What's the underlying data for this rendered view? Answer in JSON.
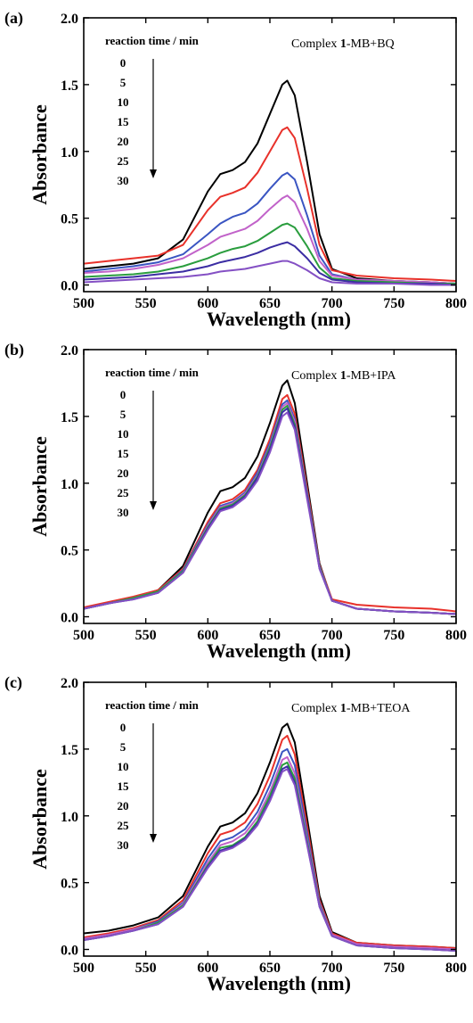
{
  "chart_data": [
    {
      "type": "line",
      "panel_label": "(a)",
      "annotation": {
        "prefix": "Complex ",
        "bold": "1",
        "suffix": "-MB+BQ"
      },
      "legend_title": "reaction time / min",
      "legend_items": [
        "0",
        "5",
        "10",
        "15",
        "20",
        "25",
        "30"
      ],
      "xlabel": "Wavelength (nm)",
      "ylabel": "Absorbance",
      "xlim": [
        500,
        800
      ],
      "ylim": [
        -0.05,
        2.0
      ],
      "xticks": [
        "500",
        "550",
        "600",
        "650",
        "700",
        "750",
        "800"
      ],
      "yticks": [
        "0.0",
        "0.5",
        "1.0",
        "1.5",
        "2.0"
      ],
      "grid": false,
      "colors": [
        "#000000",
        "#e8312a",
        "#3a55c2",
        "#c162c9",
        "#2a9d3e",
        "#3b2da3",
        "#8450c4"
      ],
      "series": [
        {
          "x": [
            500,
            520,
            540,
            560,
            580,
            600,
            610,
            620,
            630,
            640,
            650,
            660,
            664,
            670,
            680,
            690,
            700,
            720,
            750,
            780,
            800
          ],
          "values": [
            0.12,
            0.14,
            0.16,
            0.2,
            0.34,
            0.7,
            0.83,
            0.86,
            0.92,
            1.06,
            1.28,
            1.5,
            1.53,
            1.42,
            0.92,
            0.38,
            0.12,
            0.05,
            0.03,
            0.02,
            0.01
          ]
        },
        {
          "x": [
            500,
            520,
            540,
            560,
            580,
            600,
            610,
            620,
            630,
            640,
            650,
            660,
            664,
            670,
            680,
            690,
            700,
            720,
            750,
            780,
            800
          ],
          "values": [
            0.16,
            0.18,
            0.2,
            0.22,
            0.3,
            0.56,
            0.66,
            0.69,
            0.73,
            0.84,
            1.0,
            1.16,
            1.18,
            1.1,
            0.72,
            0.3,
            0.11,
            0.07,
            0.05,
            0.04,
            0.03
          ]
        },
        {
          "x": [
            500,
            520,
            540,
            560,
            580,
            600,
            610,
            620,
            630,
            640,
            650,
            660,
            664,
            670,
            680,
            690,
            700,
            720,
            750,
            780,
            800
          ],
          "values": [
            0.1,
            0.12,
            0.14,
            0.17,
            0.23,
            0.38,
            0.46,
            0.51,
            0.54,
            0.61,
            0.72,
            0.82,
            0.84,
            0.79,
            0.52,
            0.22,
            0.08,
            0.04,
            0.03,
            0.02,
            0.01
          ]
        },
        {
          "x": [
            500,
            520,
            540,
            560,
            580,
            600,
            610,
            620,
            630,
            640,
            650,
            660,
            664,
            670,
            680,
            690,
            700,
            720,
            750,
            780,
            800
          ],
          "values": [
            0.09,
            0.1,
            0.12,
            0.15,
            0.2,
            0.3,
            0.36,
            0.39,
            0.42,
            0.48,
            0.57,
            0.65,
            0.67,
            0.62,
            0.42,
            0.18,
            0.07,
            0.04,
            0.03,
            0.02,
            0.01
          ]
        },
        {
          "x": [
            500,
            520,
            540,
            560,
            580,
            600,
            610,
            620,
            630,
            640,
            650,
            660,
            664,
            670,
            680,
            690,
            700,
            720,
            750,
            780,
            800
          ],
          "values": [
            0.06,
            0.07,
            0.08,
            0.1,
            0.14,
            0.2,
            0.24,
            0.27,
            0.29,
            0.33,
            0.39,
            0.45,
            0.46,
            0.43,
            0.29,
            0.13,
            0.05,
            0.03,
            0.02,
            0.01,
            0.01
          ]
        },
        {
          "x": [
            500,
            520,
            540,
            560,
            580,
            600,
            610,
            620,
            630,
            640,
            650,
            660,
            664,
            670,
            680,
            690,
            700,
            720,
            750,
            780,
            800
          ],
          "values": [
            0.04,
            0.05,
            0.06,
            0.08,
            0.1,
            0.14,
            0.17,
            0.19,
            0.21,
            0.24,
            0.28,
            0.31,
            0.32,
            0.29,
            0.2,
            0.09,
            0.04,
            0.02,
            0.01,
            0.01,
            0.0
          ]
        },
        {
          "x": [
            500,
            520,
            540,
            560,
            580,
            600,
            610,
            620,
            630,
            640,
            650,
            660,
            664,
            670,
            680,
            690,
            700,
            720,
            750,
            780,
            800
          ],
          "values": [
            0.02,
            0.03,
            0.04,
            0.05,
            0.06,
            0.08,
            0.1,
            0.11,
            0.12,
            0.14,
            0.16,
            0.18,
            0.18,
            0.16,
            0.11,
            0.05,
            0.02,
            0.01,
            0.01,
            0.0,
            0.0
          ]
        }
      ]
    },
    {
      "type": "line",
      "panel_label": "(b)",
      "annotation": {
        "prefix": "Complex ",
        "bold": "1",
        "suffix": "-MB+IPA"
      },
      "legend_title": "reaction time / min",
      "legend_items": [
        "0",
        "5",
        "10",
        "15",
        "20",
        "25",
        "30"
      ],
      "xlabel": "Wavelength (nm)",
      "ylabel": "Absorbance",
      "xlim": [
        500,
        800
      ],
      "ylim": [
        -0.05,
        2.0
      ],
      "xticks": [
        "500",
        "550",
        "600",
        "650",
        "700",
        "750",
        "800"
      ],
      "yticks": [
        "0.0",
        "0.5",
        "1.0",
        "1.5",
        "2.0"
      ],
      "grid": false,
      "colors": [
        "#000000",
        "#e8312a",
        "#3a55c2",
        "#c162c9",
        "#2a9d3e",
        "#3b2da3",
        "#8450c4"
      ],
      "series": [
        {
          "x": [
            500,
            520,
            540,
            560,
            580,
            600,
            610,
            620,
            630,
            640,
            650,
            660,
            664,
            670,
            680,
            690,
            700,
            720,
            750,
            780,
            800
          ],
          "values": [
            0.06,
            0.1,
            0.14,
            0.2,
            0.38,
            0.78,
            0.94,
            0.97,
            1.04,
            1.2,
            1.45,
            1.73,
            1.77,
            1.6,
            1.0,
            0.4,
            0.12,
            0.06,
            0.04,
            0.03,
            0.02
          ]
        },
        {
          "x": [
            500,
            520,
            540,
            560,
            580,
            600,
            610,
            620,
            630,
            640,
            650,
            660,
            664,
            670,
            680,
            690,
            700,
            720,
            750,
            780,
            800
          ],
          "values": [
            0.07,
            0.11,
            0.15,
            0.2,
            0.36,
            0.71,
            0.85,
            0.88,
            0.95,
            1.1,
            1.33,
            1.63,
            1.66,
            1.52,
            0.96,
            0.39,
            0.13,
            0.09,
            0.07,
            0.06,
            0.04
          ]
        },
        {
          "x": [
            500,
            520,
            540,
            560,
            580,
            600,
            610,
            620,
            630,
            640,
            650,
            660,
            664,
            670,
            680,
            690,
            700,
            720,
            750,
            780,
            800
          ],
          "values": [
            0.06,
            0.1,
            0.14,
            0.19,
            0.35,
            0.69,
            0.83,
            0.86,
            0.93,
            1.08,
            1.3,
            1.59,
            1.62,
            1.48,
            0.93,
            0.38,
            0.12,
            0.06,
            0.04,
            0.03,
            0.02
          ]
        },
        {
          "x": [
            500,
            520,
            540,
            560,
            580,
            600,
            610,
            620,
            630,
            640,
            650,
            660,
            664,
            670,
            680,
            690,
            700,
            720,
            750,
            780,
            800
          ],
          "values": [
            0.06,
            0.1,
            0.14,
            0.19,
            0.34,
            0.68,
            0.82,
            0.85,
            0.92,
            1.06,
            1.28,
            1.57,
            1.6,
            1.46,
            0.92,
            0.37,
            0.12,
            0.06,
            0.04,
            0.03,
            0.02
          ]
        },
        {
          "x": [
            500,
            520,
            540,
            560,
            580,
            600,
            610,
            620,
            630,
            640,
            650,
            660,
            664,
            670,
            680,
            690,
            700,
            720,
            750,
            780,
            800
          ],
          "values": [
            0.06,
            0.1,
            0.14,
            0.19,
            0.34,
            0.67,
            0.81,
            0.84,
            0.91,
            1.05,
            1.27,
            1.55,
            1.58,
            1.44,
            0.91,
            0.37,
            0.12,
            0.06,
            0.04,
            0.03,
            0.02
          ]
        },
        {
          "x": [
            500,
            520,
            540,
            560,
            580,
            600,
            610,
            620,
            630,
            640,
            650,
            660,
            664,
            670,
            680,
            690,
            700,
            720,
            750,
            780,
            800
          ],
          "values": [
            0.06,
            0.1,
            0.13,
            0.18,
            0.33,
            0.66,
            0.8,
            0.83,
            0.9,
            1.04,
            1.25,
            1.53,
            1.56,
            1.42,
            0.9,
            0.36,
            0.12,
            0.06,
            0.04,
            0.03,
            0.02
          ]
        },
        {
          "x": [
            500,
            520,
            540,
            560,
            580,
            600,
            610,
            620,
            630,
            640,
            650,
            660,
            664,
            670,
            680,
            690,
            700,
            720,
            750,
            780,
            800
          ],
          "values": [
            0.06,
            0.1,
            0.13,
            0.18,
            0.33,
            0.65,
            0.79,
            0.82,
            0.89,
            1.02,
            1.23,
            1.5,
            1.53,
            1.4,
            0.88,
            0.36,
            0.12,
            0.06,
            0.04,
            0.03,
            0.02
          ]
        }
      ]
    },
    {
      "type": "line",
      "panel_label": "(c)",
      "annotation": {
        "prefix": "Complex ",
        "bold": "1",
        "suffix": "-MB+TEOA"
      },
      "legend_title": "reaction time / min",
      "legend_items": [
        "0",
        "5",
        "10",
        "15",
        "20",
        "25",
        "30"
      ],
      "xlabel": "Wavelength (nm)",
      "ylabel": "Absorbance",
      "xlim": [
        500,
        800
      ],
      "ylim": [
        -0.05,
        2.0
      ],
      "xticks": [
        "500",
        "550",
        "600",
        "650",
        "700",
        "750",
        "800"
      ],
      "yticks": [
        "0.0",
        "0.5",
        "1.0",
        "1.5",
        "2.0"
      ],
      "grid": false,
      "colors": [
        "#000000",
        "#e8312a",
        "#3a55c2",
        "#c162c9",
        "#2a9d3e",
        "#3b2da3",
        "#8450c4"
      ],
      "series": [
        {
          "x": [
            500,
            520,
            540,
            560,
            580,
            600,
            610,
            620,
            630,
            640,
            650,
            660,
            664,
            670,
            680,
            690,
            700,
            720,
            750,
            780,
            800
          ],
          "values": [
            0.12,
            0.14,
            0.18,
            0.24,
            0.4,
            0.77,
            0.92,
            0.95,
            1.02,
            1.17,
            1.4,
            1.66,
            1.69,
            1.55,
            0.98,
            0.4,
            0.13,
            0.05,
            0.03,
            0.02,
            0.01
          ]
        },
        {
          "x": [
            500,
            520,
            540,
            560,
            580,
            600,
            610,
            620,
            630,
            640,
            650,
            660,
            664,
            670,
            680,
            690,
            700,
            720,
            750,
            780,
            800
          ],
          "values": [
            0.09,
            0.12,
            0.16,
            0.22,
            0.37,
            0.72,
            0.86,
            0.89,
            0.95,
            1.09,
            1.3,
            1.57,
            1.6,
            1.46,
            0.92,
            0.37,
            0.12,
            0.05,
            0.03,
            0.02,
            0.01
          ]
        },
        {
          "x": [
            500,
            520,
            540,
            560,
            580,
            600,
            610,
            620,
            630,
            640,
            650,
            660,
            664,
            670,
            680,
            690,
            700,
            720,
            750,
            780,
            800
          ],
          "values": [
            0.08,
            0.11,
            0.15,
            0.21,
            0.35,
            0.68,
            0.81,
            0.84,
            0.9,
            1.03,
            1.23,
            1.48,
            1.5,
            1.38,
            0.87,
            0.35,
            0.11,
            0.04,
            0.02,
            0.01,
            0.0
          ]
        },
        {
          "x": [
            500,
            520,
            540,
            560,
            580,
            600,
            610,
            620,
            630,
            640,
            650,
            660,
            664,
            670,
            680,
            690,
            700,
            720,
            750,
            780,
            800
          ],
          "values": [
            0.08,
            0.11,
            0.15,
            0.2,
            0.34,
            0.65,
            0.78,
            0.81,
            0.87,
            0.99,
            1.18,
            1.42,
            1.44,
            1.32,
            0.83,
            0.34,
            0.11,
            0.04,
            0.02,
            0.01,
            0.0
          ]
        },
        {
          "x": [
            500,
            520,
            540,
            560,
            580,
            600,
            610,
            620,
            630,
            640,
            650,
            660,
            664,
            670,
            680,
            690,
            700,
            720,
            750,
            780,
            800
          ],
          "values": [
            0.07,
            0.1,
            0.14,
            0.2,
            0.33,
            0.63,
            0.76,
            0.78,
            0.84,
            0.96,
            1.15,
            1.38,
            1.4,
            1.28,
            0.81,
            0.33,
            0.1,
            0.03,
            0.01,
            0.0,
            -0.01
          ]
        },
        {
          "x": [
            500,
            520,
            540,
            560,
            580,
            600,
            610,
            620,
            630,
            640,
            650,
            660,
            664,
            670,
            680,
            690,
            700,
            720,
            750,
            780,
            800
          ],
          "values": [
            0.07,
            0.1,
            0.14,
            0.19,
            0.32,
            0.62,
            0.74,
            0.77,
            0.83,
            0.94,
            1.12,
            1.35,
            1.37,
            1.25,
            0.79,
            0.32,
            0.1,
            0.03,
            0.01,
            0.0,
            -0.01
          ]
        },
        {
          "x": [
            500,
            520,
            540,
            560,
            580,
            600,
            610,
            620,
            630,
            640,
            650,
            660,
            664,
            670,
            680,
            690,
            700,
            720,
            750,
            780,
            800
          ],
          "values": [
            0.07,
            0.1,
            0.14,
            0.19,
            0.32,
            0.61,
            0.73,
            0.76,
            0.82,
            0.93,
            1.11,
            1.33,
            1.35,
            1.23,
            0.78,
            0.32,
            0.1,
            0.03,
            0.01,
            0.0,
            -0.01
          ]
        }
      ]
    }
  ]
}
